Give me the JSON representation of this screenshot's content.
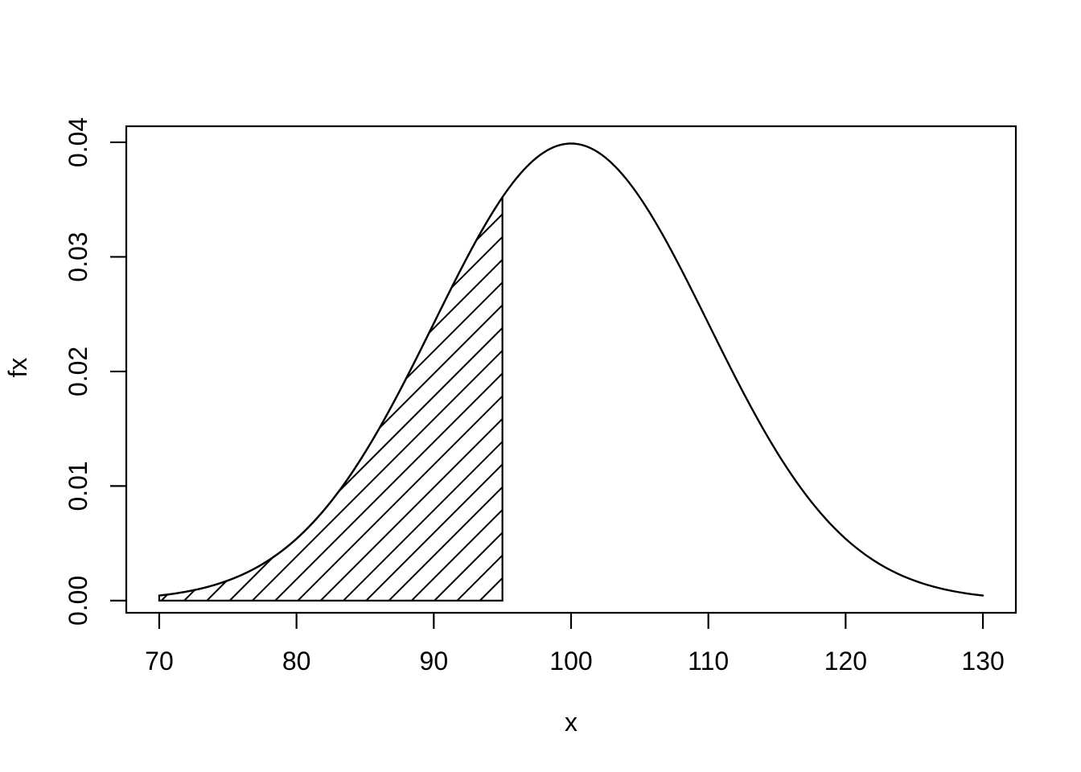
{
  "figure": {
    "background_color": "#ffffff",
    "line_color": "#000000"
  },
  "chart_data": {
    "type": "line",
    "title": "",
    "xlabel": "x",
    "ylabel": "fx",
    "x_ticks": [
      70,
      80,
      90,
      100,
      110,
      120,
      130
    ],
    "y_ticks": [
      0,
      0.01,
      0.02,
      0.03,
      0.04
    ],
    "y_tick_labels": [
      "0.00",
      "0.01",
      "0.02",
      "0.03",
      "0.04"
    ],
    "xlim": [
      67.6,
      132.4
    ],
    "ylim": [
      -0.00106,
      0.0414
    ],
    "grid": false,
    "legend": "none",
    "box": "full-frame",
    "curve": {
      "name": "normal-density",
      "mean": 100,
      "sd": 10,
      "peak": {
        "x": 100,
        "y": 0.03989
      },
      "x_range": [
        70,
        130
      ],
      "points": [
        [
          70,
          0.00044
        ],
        [
          72.5,
          0.00091
        ],
        [
          75,
          0.00175
        ],
        [
          77.5,
          0.00317
        ],
        [
          80,
          0.0054
        ],
        [
          82.5,
          0.00862
        ],
        [
          85,
          0.01295
        ],
        [
          87.5,
          0.01826
        ],
        [
          90,
          0.0242
        ],
        [
          92.5,
          0.03011
        ],
        [
          95,
          0.03521
        ],
        [
          97.5,
          0.03867
        ],
        [
          100,
          0.03989
        ],
        [
          102.5,
          0.03867
        ],
        [
          105,
          0.03521
        ],
        [
          107.5,
          0.03011
        ],
        [
          110,
          0.0242
        ],
        [
          112.5,
          0.01826
        ],
        [
          115,
          0.01295
        ],
        [
          117.5,
          0.00862
        ],
        [
          120,
          0.0054
        ],
        [
          122.5,
          0.00317
        ],
        [
          125,
          0.00175
        ],
        [
          127.5,
          0.00091
        ],
        [
          130,
          0.00044
        ]
      ]
    },
    "shaded_region": {
      "from": 70,
      "to": 95,
      "fill_style": "diagonal-hatch",
      "hatch_angle_deg": 45
    }
  }
}
